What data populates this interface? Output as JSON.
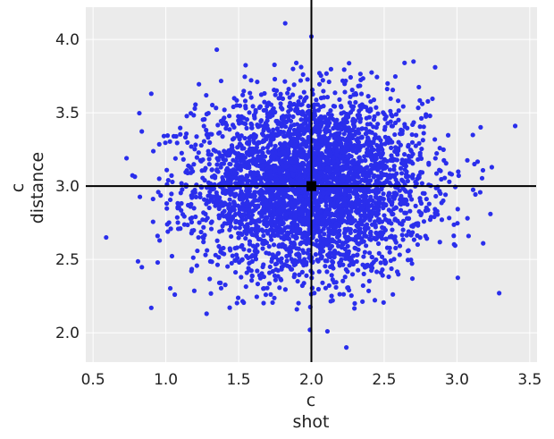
{
  "chart_data": {
    "type": "scatter",
    "xlabel": [
      "c",
      "shot"
    ],
    "ylabel": [
      "c",
      "distance"
    ],
    "xlim": [
      0.45,
      3.55
    ],
    "ylim": [
      1.8,
      4.22
    ],
    "xticks": [
      "0.5",
      "1.0",
      "1.5",
      "2.0",
      "2.5",
      "3.0",
      "3.5"
    ],
    "yticks": [
      "2.0",
      "2.5",
      "3.0",
      "3.5",
      "4.0"
    ],
    "grid": true,
    "background": "#ebebeb",
    "point_color": "#2a2eec",
    "reference_point": {
      "x": 2.0,
      "y": 3.0
    },
    "reference_lines": {
      "x": 2.0,
      "y": 3.0
    },
    "sample_distribution": {
      "x_mean": 1.99,
      "x_sd": 0.39,
      "y_mean": 3.0,
      "y_sd": 0.3,
      "n": 4000
    },
    "notable_points": [
      {
        "x": 3.4,
        "y": 3.41
      },
      {
        "x": 0.59,
        "y": 2.65
      },
      {
        "x": 1.82,
        "y": 4.11
      },
      {
        "x": 2.0,
        "y": 4.02
      },
      {
        "x": 2.24,
        "y": 1.9
      },
      {
        "x": 2.11,
        "y": 2.01
      },
      {
        "x": 1.99,
        "y": 2.02
      },
      {
        "x": 3.29,
        "y": 2.27
      },
      {
        "x": 0.9,
        "y": 2.17
      },
      {
        "x": 0.9,
        "y": 3.63
      },
      {
        "x": 1.35,
        "y": 3.93
      },
      {
        "x": 2.64,
        "y": 3.84
      },
      {
        "x": 2.85,
        "y": 3.81
      },
      {
        "x": 3.12,
        "y": 3.15
      },
      {
        "x": 3.23,
        "y": 2.81
      },
      {
        "x": 0.73,
        "y": 3.19
      },
      {
        "x": 1.28,
        "y": 2.13
      },
      {
        "x": 3.18,
        "y": 2.61
      }
    ]
  }
}
